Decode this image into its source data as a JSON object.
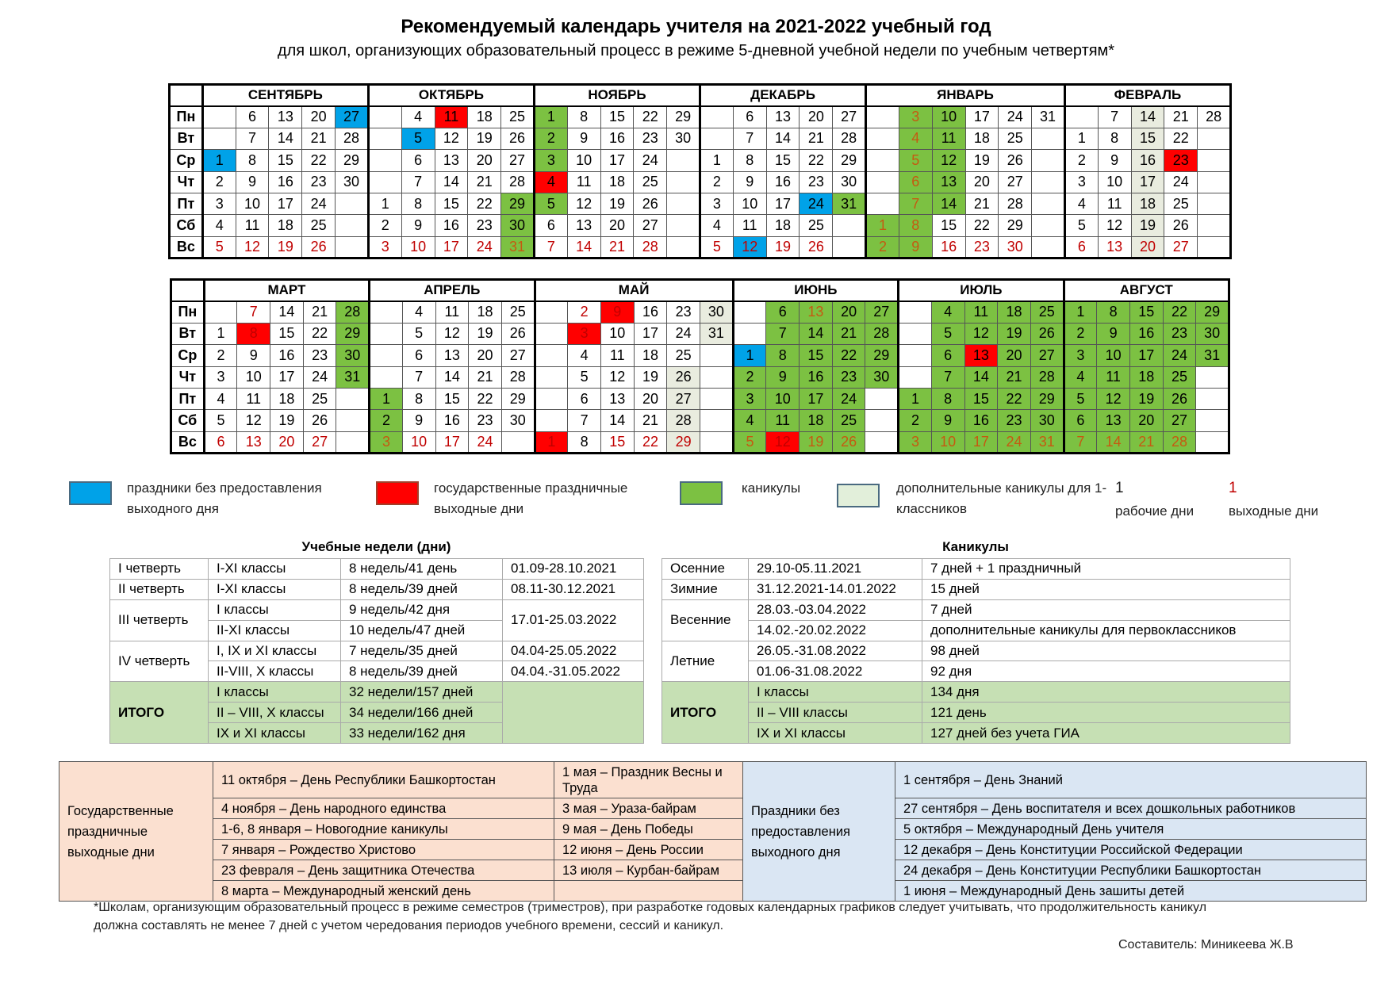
{
  "title": "Рекомендуемый календарь учителя на 2021-2022 учебный год",
  "subtitle": "для школ, организующих образовательный процесс в режиме 5-дневной учебной недели по учебным четвертям*",
  "weekdays": [
    "Пн",
    "Вт",
    "Ср",
    "Чт",
    "Пт",
    "Сб",
    "Вс"
  ],
  "colors": {
    "holiday_no_dayoff": "#00a2e8",
    "state_holiday": "#ff0000",
    "vacation": "#7cc142",
    "extra_vacation_1st_grade": "#e9ecdf",
    "day_off_text": "#c00000"
  },
  "calendars": [
    {
      "months": [
        {
          "name": "СЕНТЯБРЬ",
          "columns": [
            [
              null,
              null,
              1,
              2,
              3,
              4,
              5
            ],
            [
              6,
              7,
              8,
              9,
              10,
              11,
              12
            ],
            [
              13,
              14,
              15,
              16,
              17,
              18,
              19
            ],
            [
              20,
              21,
              22,
              23,
              24,
              25,
              26
            ],
            [
              27,
              28,
              29,
              30,
              null,
              null,
              null
            ]
          ],
          "blue": [
            1,
            27
          ],
          "red": [],
          "green": [],
          "light": [],
          "red_text": [
            5,
            12,
            19,
            26
          ]
        },
        {
          "name": "ОКТЯБРЬ",
          "columns": [
            [
              null,
              null,
              null,
              null,
              1,
              2,
              3
            ],
            [
              4,
              5,
              6,
              7,
              8,
              9,
              10
            ],
            [
              11,
              12,
              13,
              14,
              15,
              16,
              17
            ],
            [
              18,
              19,
              20,
              21,
              22,
              23,
              24
            ],
            [
              25,
              26,
              27,
              28,
              29,
              30,
              31
            ]
          ],
          "blue": [
            5
          ],
          "red": [
            11
          ],
          "green": [
            29,
            30,
            31
          ],
          "light": [],
          "red_text": [
            3,
            10,
            17,
            24,
            31
          ]
        },
        {
          "name": "НОЯБРЬ",
          "columns": [
            [
              1,
              2,
              3,
              4,
              5,
              6,
              7
            ],
            [
              8,
              9,
              10,
              11,
              12,
              13,
              14
            ],
            [
              15,
              16,
              17,
              18,
              19,
              20,
              21
            ],
            [
              22,
              23,
              24,
              25,
              26,
              27,
              28
            ],
            [
              29,
              30,
              null,
              null,
              null,
              null,
              null
            ]
          ],
          "blue": [],
          "red": [
            4
          ],
          "green": [
            1,
            2,
            3,
            5
          ],
          "light": [],
          "red_text": [
            7,
            14,
            21,
            28
          ]
        },
        {
          "name": "ДЕКАБРЬ",
          "columns": [
            [
              null,
              null,
              1,
              2,
              3,
              4,
              5
            ],
            [
              6,
              7,
              8,
              9,
              10,
              11,
              12
            ],
            [
              13,
              14,
              15,
              16,
              17,
              18,
              19
            ],
            [
              20,
              21,
              22,
              23,
              24,
              25,
              26
            ],
            [
              27,
              28,
              29,
              30,
              31,
              null,
              null
            ]
          ],
          "blue": [
            12,
            24
          ],
          "red": [],
          "green": [
            31
          ],
          "light": [],
          "red_text": [
            5,
            12,
            19,
            26
          ]
        },
        {
          "name": "ЯНВАРЬ",
          "columns": [
            [
              null,
              null,
              null,
              null,
              null,
              1,
              2
            ],
            [
              3,
              4,
              5,
              6,
              7,
              8,
              9
            ],
            [
              10,
              11,
              12,
              13,
              14,
              15,
              16
            ],
            [
              17,
              18,
              19,
              20,
              21,
              22,
              23
            ],
            [
              24,
              25,
              26,
              27,
              28,
              29,
              30
            ],
            [
              31,
              null,
              null,
              null,
              null,
              null,
              null
            ]
          ],
          "blue": [],
          "red": [],
          "green": [
            1,
            2,
            3,
            4,
            5,
            6,
            7,
            8,
            9,
            10,
            11,
            12,
            13,
            14
          ],
          "light": [],
          "red_text": [
            1,
            2,
            3,
            4,
            5,
            6,
            7,
            8,
            9,
            16,
            23,
            30
          ]
        },
        {
          "name": "ФЕВРАЛЬ",
          "columns": [
            [
              null,
              1,
              2,
              3,
              4,
              5,
              6
            ],
            [
              7,
              8,
              9,
              10,
              11,
              12,
              13
            ],
            [
              14,
              15,
              16,
              17,
              18,
              19,
              20
            ],
            [
              21,
              22,
              23,
              24,
              25,
              26,
              27
            ],
            [
              28,
              null,
              null,
              null,
              null,
              null,
              null
            ]
          ],
          "blue": [],
          "red": [
            23
          ],
          "green": [],
          "light": [
            14,
            15,
            16,
            17,
            18,
            19,
            20
          ],
          "red_text": [
            6,
            13,
            20,
            27
          ]
        }
      ]
    },
    {
      "months": [
        {
          "name": "МАРТ",
          "columns": [
            [
              null,
              1,
              2,
              3,
              4,
              5,
              6
            ],
            [
              7,
              8,
              9,
              10,
              11,
              12,
              13
            ],
            [
              14,
              15,
              16,
              17,
              18,
              19,
              20
            ],
            [
              21,
              22,
              23,
              24,
              25,
              26,
              27
            ],
            [
              28,
              29,
              30,
              31,
              null,
              null,
              null
            ]
          ],
          "blue": [],
          "red": [
            8
          ],
          "green": [
            28,
            29,
            30,
            31
          ],
          "light": [],
          "red_text": [
            6,
            7,
            8,
            13,
            20,
            27
          ]
        },
        {
          "name": "АПРЕЛЬ",
          "columns": [
            [
              null,
              null,
              null,
              null,
              1,
              2,
              3
            ],
            [
              4,
              5,
              6,
              7,
              8,
              9,
              10
            ],
            [
              11,
              12,
              13,
              14,
              15,
              16,
              17
            ],
            [
              18,
              19,
              20,
              21,
              22,
              23,
              24
            ],
            [
              25,
              26,
              27,
              28,
              29,
              30,
              null
            ]
          ],
          "blue": [],
          "red": [],
          "green": [
            1,
            2,
            3
          ],
          "light": [],
          "red_text": [
            3,
            10,
            17,
            24
          ]
        },
        {
          "name": "МАЙ",
          "columns": [
            [
              null,
              null,
              null,
              null,
              null,
              null,
              1
            ],
            [
              2,
              3,
              4,
              5,
              6,
              7,
              8
            ],
            [
              9,
              10,
              11,
              12,
              13,
              14,
              15
            ],
            [
              16,
              17,
              18,
              19,
              20,
              21,
              22
            ],
            [
              23,
              24,
              25,
              26,
              27,
              28,
              29
            ],
            [
              30,
              31,
              null,
              null,
              null,
              null,
              null
            ]
          ],
          "blue": [],
          "red": [
            1,
            3,
            9
          ],
          "green": [],
          "light": [
            26,
            27,
            28,
            29,
            30,
            31
          ],
          "red_text": [
            1,
            2,
            3,
            9,
            15,
            22,
            29
          ]
        },
        {
          "name": "ИЮНЬ",
          "columns": [
            [
              null,
              null,
              1,
              2,
              3,
              4,
              5
            ],
            [
              6,
              7,
              8,
              9,
              10,
              11,
              12
            ],
            [
              13,
              14,
              15,
              16,
              17,
              18,
              19
            ],
            [
              20,
              21,
              22,
              23,
              24,
              25,
              26
            ],
            [
              27,
              28,
              29,
              30,
              null,
              null,
              null
            ]
          ],
          "blue": [
            1
          ],
          "red": [
            12
          ],
          "green": [
            2,
            3,
            4,
            5,
            6,
            7,
            8,
            9,
            10,
            11,
            13,
            14,
            15,
            16,
            17,
            18,
            19,
            20,
            21,
            22,
            23,
            24,
            25,
            26,
            27,
            28,
            29,
            30
          ],
          "light": [],
          "red_text": [
            5,
            12,
            13,
            19,
            26
          ]
        },
        {
          "name": "ИЮЛЬ",
          "columns": [
            [
              null,
              null,
              null,
              null,
              1,
              2,
              3
            ],
            [
              4,
              5,
              6,
              7,
              8,
              9,
              10
            ],
            [
              11,
              12,
              13,
              14,
              15,
              16,
              17
            ],
            [
              18,
              19,
              20,
              21,
              22,
              23,
              24
            ],
            [
              25,
              26,
              27,
              28,
              29,
              30,
              31
            ]
          ],
          "blue": [],
          "red": [
            13
          ],
          "green": [
            1,
            2,
            3,
            4,
            5,
            6,
            7,
            8,
            9,
            10,
            11,
            12,
            14,
            15,
            16,
            17,
            18,
            19,
            20,
            21,
            22,
            23,
            24,
            25,
            26,
            27,
            28,
            29,
            30,
            31
          ],
          "light": [],
          "red_text": [
            3,
            10,
            17,
            24,
            31
          ]
        },
        {
          "name": "АВГУСТ",
          "columns": [
            [
              1,
              2,
              3,
              4,
              5,
              6,
              7
            ],
            [
              8,
              9,
              10,
              11,
              12,
              13,
              14
            ],
            [
              15,
              16,
              17,
              18,
              19,
              20,
              21
            ],
            [
              22,
              23,
              24,
              25,
              26,
              27,
              28
            ],
            [
              29,
              30,
              31,
              null,
              null,
              null,
              null
            ]
          ],
          "blue": [],
          "red": [],
          "green": [
            1,
            2,
            3,
            4,
            5,
            6,
            7,
            8,
            9,
            10,
            11,
            12,
            13,
            14,
            15,
            16,
            17,
            18,
            19,
            20,
            21,
            22,
            23,
            24,
            25,
            26,
            27,
            28,
            29,
            30,
            31
          ],
          "light": [],
          "red_text": [
            7,
            14,
            21,
            28
          ]
        }
      ]
    }
  ],
  "legend": {
    "blue": "праздники без предоставления выходного дня",
    "red": "государственные праздничные выходные дни",
    "green": "каникулы",
    "light": "дополнительные каникулы для 1-классников",
    "work_sample": "1",
    "work_label": "рабочие дни",
    "off_sample": "1",
    "off_label": "выходные дни"
  },
  "study_weeks": {
    "title": "Учебные недели (дни)",
    "rows": [
      [
        "I четверть",
        "I-XI классы",
        "8 недель/41 день",
        "01.09-28.10.2021"
      ],
      [
        "II четверть",
        "I-XI классы",
        "8 недель/39 дней",
        "08.11-30.12.2021"
      ],
      [
        "III четверть",
        "I классы",
        "9 недель/42 дня",
        "17.01-25.03.2022"
      ],
      [
        "",
        "II-XI классы",
        "10 недель/47 дней",
        ""
      ],
      [
        "IV четверть",
        "I, IX и XI классы",
        "7 недель/35 дней",
        "04.04-25.05.2022"
      ],
      [
        "",
        "II-VIII, X классы",
        "8 недель/39 дней",
        "04.04.-31.05.2022"
      ]
    ],
    "total_label": "ИТОГО",
    "totals": [
      [
        "I классы",
        "32 недели/157 дней"
      ],
      [
        "II – VIII, X классы",
        "34 недели/166 дней"
      ],
      [
        "IX и XI классы",
        "33 недели/162 дня"
      ]
    ]
  },
  "vacations": {
    "title": "Каникулы",
    "rows": [
      [
        "Осенние",
        "29.10-05.11.2021",
        "7 дней + 1 праздничный"
      ],
      [
        "Зимние",
        "31.12.2021-14.01.2022",
        "15 дней"
      ],
      [
        "Весенние",
        "28.03.-03.04.2022",
        "7 дней"
      ],
      [
        "",
        "14.02.-20.02.2022",
        "дополнительные каникулы для первоклассников"
      ],
      [
        "Летние",
        "26.05.-31.08.2022",
        "98 дней"
      ],
      [
        "",
        "01.06-31.08.2022",
        "92 дня"
      ]
    ],
    "total_label": "ИТОГО",
    "totals": [
      [
        "I классы",
        "134 дня"
      ],
      [
        "II – VIII классы",
        "121 день"
      ],
      [
        "IX и XI классы",
        "127 дней без учета ГИА"
      ]
    ]
  },
  "holidays": {
    "state_label": "Государственные праздничные выходные дни",
    "state_col1": [
      "11 октября – День Республики Башкортостан",
      "4 ноября – День народного единства",
      "1-6, 8 января – Новогодние каникулы",
      "7 января – Рождество Христово",
      "23 февраля – День защитника Отечества",
      "8 марта – Международный женский день"
    ],
    "state_col2": [
      "1 мая – Праздник Весны и Труда",
      "3 мая – Ураза-байрам",
      "9 мая – День Победы",
      "12 июня – День России",
      "13 июля – Курбан-байрам",
      ""
    ],
    "nodayoff_label": "Праздники без предоставления выходного дня",
    "nodayoff": [
      "1 сентября – День Знаний",
      "27 сентября – День воспитателя и всех дошкольных работников",
      "5 октября – Международный День учителя",
      "12 декабря – День Конституции Российской Федерации",
      "24 декабря – День Конституции Республики Башкортостан",
      "1 июня – Международный День зашиты детей"
    ]
  },
  "footnote_1": "*Школам, организующим образовательный процесс в режиме семестров (триместров), при разработке годовых календарных графиков следует учитывать, что продолжительность каникул",
  "footnote_2": "должна составлять не менее 7 дней с учетом чередования периодов учебного времени, сессий и каникул.",
  "author": "Составитель: Миникеева Ж.В"
}
